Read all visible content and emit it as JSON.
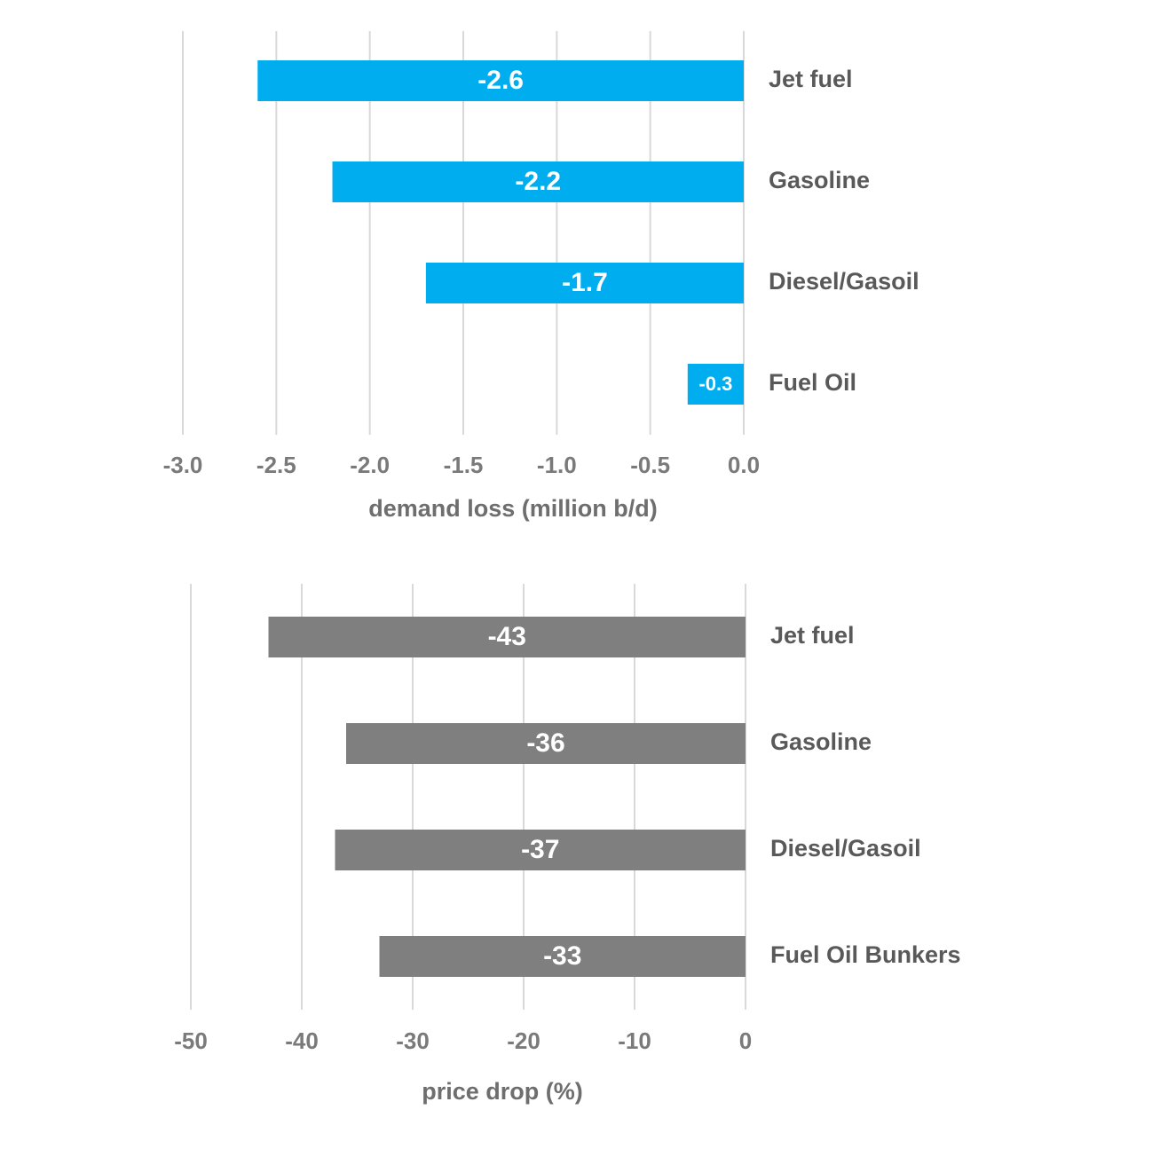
{
  "chart_data": [
    {
      "type": "bar",
      "orientation": "horizontal",
      "x_label": "demand loss (million b/d)",
      "categories": [
        "Jet fuel",
        "Gasoline",
        "Diesel/Gasoil",
        "Fuel Oil"
      ],
      "values": [
        -2.6,
        -2.2,
        -1.7,
        -0.3
      ],
      "color": "#00aeef",
      "xlim": [
        -3,
        0
      ],
      "xticks": [
        {
          "value": -3,
          "label": "-3.0"
        },
        -2.5,
        {
          "value": -2,
          "label": "-2.0"
        },
        -1.5,
        {
          "value": -1,
          "label": "-1.0"
        },
        -0.5,
        {
          "value": 0,
          "label": "0.0"
        }
      ],
      "grid": true
    },
    {
      "type": "bar",
      "orientation": "horizontal",
      "x_label": "price drop (%)",
      "categories": [
        "Jet fuel",
        "Gasoline",
        "Diesel/Gasoil",
        "Fuel Oil Bunkers"
      ],
      "values": [
        -43,
        -36,
        -37,
        -33
      ],
      "color": "#7f7f7f",
      "xlim": [
        -50,
        0
      ],
      "xticks": [
        -50,
        -40,
        -30,
        -20,
        -10,
        0
      ],
      "grid": true
    }
  ]
}
